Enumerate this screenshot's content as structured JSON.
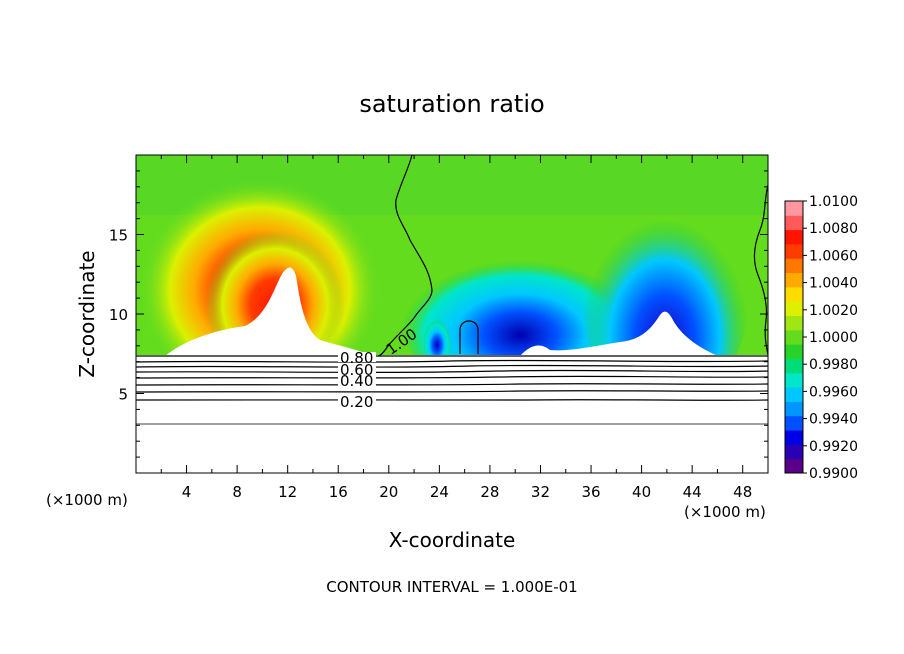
{
  "chart_data": {
    "type": "heatmap",
    "title": "saturation ratio",
    "xlabel": "X-coordinate",
    "ylabel": "Z-coordinate",
    "x_unit_note_left": "(×1000 m)",
    "x_unit_note_right": "(×1000 m)",
    "footer": "CONTOUR INTERVAL = 1.000E-01",
    "xlim": [
      0,
      50
    ],
    "ylim": [
      0,
      20
    ],
    "xticks": [
      "4",
      "8",
      "12",
      "16",
      "20",
      "24",
      "28",
      "32",
      "36",
      "40",
      "44",
      "48"
    ],
    "yticks": [
      "5",
      "10",
      "15"
    ],
    "colorbar": {
      "min": 0.99,
      "max": 1.01,
      "labels": [
        "1.0100",
        "1.0080",
        "1.0060",
        "1.0040",
        "1.0020",
        "1.0000",
        "0.9980",
        "0.9960",
        "0.9940",
        "0.9920",
        "0.9900"
      ],
      "colors": [
        "#5a0088",
        "#2a00b4",
        "#0000e6",
        "#0050ff",
        "#0096ff",
        "#00c8ff",
        "#00e6c8",
        "#00dc78",
        "#28d228",
        "#64dc1e",
        "#a0e614",
        "#dcf000",
        "#ffdc00",
        "#ffaa00",
        "#ff7800",
        "#ff3c00",
        "#ff1400",
        "#ff5a5a",
        "#ff96a0"
      ]
    },
    "contour_labels": [
      "1.00",
      "0.80",
      "0.60",
      "0.40",
      "0.20"
    ]
  }
}
